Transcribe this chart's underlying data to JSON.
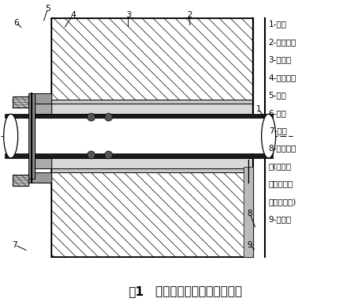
{
  "title_bold": "图1",
  "title_rest": "   柔性防水套管结构及安装图",
  "legend_lines": [
    "1-钢管",
    "2-法兰套管",
    "3-密封圈",
    "4-法兰压盖",
    "5-螺柱",
    "6-螺母",
    "7-法兰",
    "8-密封膏嵌",
    "缝(迎水面",
    "为为腐蚀性",
    "介质时适用)",
    "9-迎水面"
  ],
  "bg_color": "#ffffff"
}
